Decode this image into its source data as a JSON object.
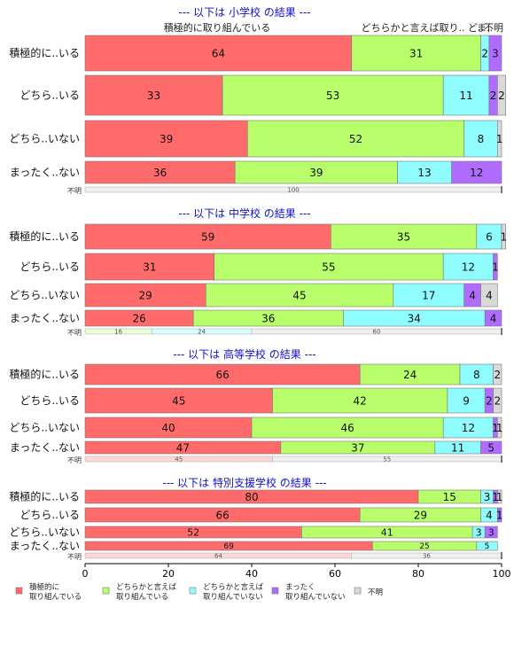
{
  "chart_data": {
    "type": "bar",
    "orientation": "horizontal-stacked",
    "xlim": [
      0,
      100
    ],
    "x_ticks": [
      "0",
      "20",
      "40",
      "60",
      "80",
      "100"
    ],
    "series": [
      {
        "name": "積極的に\n取り組んでいる",
        "color": "#ff6b6b"
      },
      {
        "name": "どちらかと言えば\n取り組んでいる",
        "color": "#b8ff6b"
      },
      {
        "name": "どちらかと言えば\n取り組んでいない",
        "color": "#8ffcff"
      },
      {
        "name": "まったく\n取り組んでいない",
        "color": "#b06bff"
      },
      {
        "name": "不明",
        "color": "#d9d9d9"
      }
    ],
    "panels": [
      {
        "title": "--- 以下は 小学校 の結果 ---",
        "column_headers": [
          "積極的に取り組んでいる",
          "どちらかと言えば取り..",
          "ど..",
          "ま..",
          "不明"
        ],
        "rows": [
          {
            "label": "積極的に..いる",
            "values": [
              64,
              31,
              2,
              3,
              0
            ]
          },
          {
            "label": "どちら..いる",
            "values": [
              33,
              53,
              11,
              2,
              2
            ]
          },
          {
            "label": "どちら..いない",
            "values": [
              39,
              52,
              8,
              0,
              1
            ]
          },
          {
            "label": "まったく..ない",
            "values": [
              36,
              39,
              13,
              12,
              0
            ]
          }
        ],
        "unknown_row": {
          "label": "不明",
          "values": [
            0,
            0,
            0,
            0,
            100
          ]
        }
      },
      {
        "title": "--- 以下は 中学校 の結果 ---",
        "rows": [
          {
            "label": "積極的に..いる",
            "values": [
              59,
              35,
              6,
              0,
              1
            ]
          },
          {
            "label": "どちら..いる",
            "values": [
              31,
              55,
              12,
              1,
              0
            ]
          },
          {
            "label": "どちら..いない",
            "values": [
              29,
              45,
              17,
              4,
              4
            ]
          },
          {
            "label": "まったく..ない",
            "values": [
              26,
              36,
              34,
              4,
              0
            ]
          }
        ],
        "unknown_row": {
          "label": "不明",
          "values": [
            0,
            16,
            24,
            0,
            60
          ]
        }
      },
      {
        "title": "--- 以下は 高等学校 の結果 ---",
        "rows": [
          {
            "label": "積極的に..いる",
            "values": [
              66,
              24,
              8,
              0,
              2
            ]
          },
          {
            "label": "どちら..いる",
            "values": [
              45,
              42,
              9,
              2,
              2
            ]
          },
          {
            "label": "どちら..いない",
            "values": [
              40,
              46,
              12,
              1,
              1
            ]
          },
          {
            "label": "まったく..ない",
            "values": [
              47,
              37,
              11,
              5,
              0
            ]
          }
        ],
        "unknown_row": {
          "label": "不明",
          "values": [
            45,
            0,
            0,
            0,
            55
          ]
        }
      },
      {
        "title": "--- 以下は 特別支援学校 の結果 ---",
        "rows": [
          {
            "label": "積極的に..いる",
            "values": [
              80,
              15,
              3,
              1,
              1
            ]
          },
          {
            "label": "どちら..いる",
            "values": [
              66,
              29,
              4,
              1,
              0
            ]
          },
          {
            "label": "どちら..いない",
            "values": [
              52,
              41,
              3,
              3,
              0
            ]
          },
          {
            "label": "まったく..ない",
            "values": [
              69,
              25,
              5,
              0,
              0
            ]
          }
        ],
        "unknown_row": {
          "label": "不明",
          "values": [
            64,
            0,
            0,
            0,
            36
          ]
        }
      }
    ]
  }
}
